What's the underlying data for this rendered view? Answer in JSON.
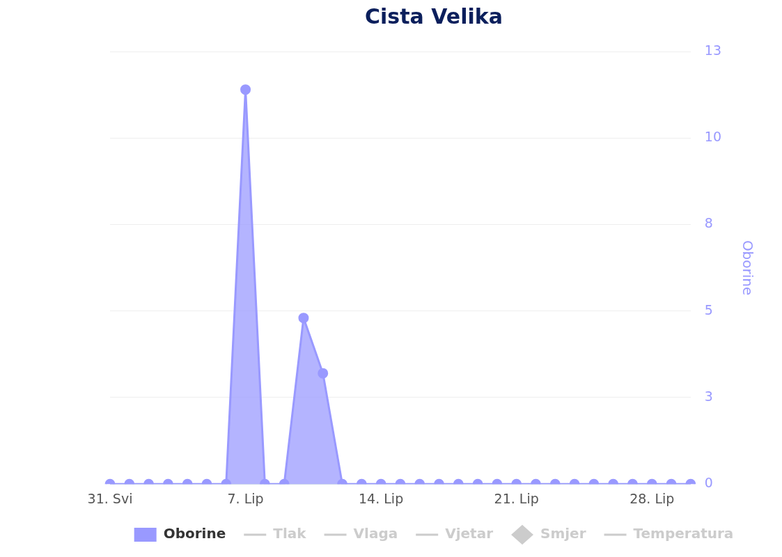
{
  "chart_data": {
    "type": "area",
    "title": "Cista Velika",
    "categories": [
      "31. Svi",
      null,
      null,
      null,
      null,
      null,
      null,
      "7. Lip",
      null,
      null,
      null,
      null,
      null,
      null,
      "14. Lip",
      null,
      null,
      null,
      null,
      null,
      null,
      "21. Lip",
      null,
      null,
      null,
      null,
      null,
      null,
      "28. Lip",
      null,
      null
    ],
    "series": [
      {
        "name": "Oborine",
        "color": "#9999ff",
        "values": [
          0,
          0,
          0,
          0,
          0,
          0,
          0,
          11.4,
          0,
          0,
          4.8,
          3.2,
          0,
          0,
          0,
          0,
          0,
          0,
          0,
          0,
          0,
          0,
          0,
          0,
          0,
          0,
          0,
          0,
          0,
          0,
          0
        ]
      },
      {
        "name": "Tlak",
        "color": "#cccccc",
        "type": "line",
        "values": [
          null,
          null,
          null,
          null,
          null,
          null,
          null,
          null,
          null,
          null,
          null,
          null,
          null,
          null,
          null,
          null,
          null,
          null,
          null,
          null,
          null,
          null,
          null,
          null,
          null,
          null,
          null,
          null,
          null,
          null,
          null
        ]
      },
      {
        "name": "Vlaga",
        "color": "#cccccc",
        "type": "line",
        "values": [
          null,
          null,
          null,
          null,
          null,
          null,
          null,
          null,
          null,
          null,
          null,
          null,
          null,
          null,
          null,
          null,
          null,
          null,
          null,
          null,
          null,
          null,
          null,
          null,
          null,
          null,
          null,
          null,
          null,
          null,
          null
        ]
      },
      {
        "name": "Vjetar",
        "color": "#cccccc",
        "type": "line",
        "values": [
          null,
          null,
          null,
          null,
          null,
          null,
          null,
          null,
          null,
          null,
          null,
          null,
          null,
          null,
          null,
          null,
          null,
          null,
          null,
          null,
          null,
          null,
          null,
          null,
          null,
          null,
          null,
          null,
          null,
          null,
          null
        ]
      },
      {
        "name": "Smjer",
        "color": "#cccccc",
        "type": "scatter",
        "values": [
          null,
          null,
          null,
          null,
          null,
          null,
          null,
          null,
          null,
          null,
          null,
          null,
          null,
          null,
          null,
          null,
          null,
          null,
          null,
          null,
          null,
          null,
          null,
          null,
          null,
          null,
          null,
          null,
          null,
          null,
          null
        ]
      },
      {
        "name": "Temperatura",
        "color": "#cccccc",
        "type": "line",
        "values": [
          null,
          null,
          null,
          null,
          null,
          null,
          null,
          null,
          null,
          null,
          null,
          null,
          null,
          null,
          null,
          null,
          null,
          null,
          null,
          null,
          null,
          null,
          null,
          null,
          null,
          null,
          null,
          null,
          null,
          null,
          null
        ]
      }
    ],
    "ylabel": "Oborine",
    "ylim": [
      0,
      12.5
    ],
    "yticks": [
      0,
      {
        "value": 2.5,
        "label": "3"
      },
      5,
      {
        "value": 7.5,
        "label": "8"
      },
      10,
      {
        "value": 12.5,
        "label": "13"
      }
    ],
    "grid": "y",
    "legend": "bottom",
    "marker": "circle"
  }
}
